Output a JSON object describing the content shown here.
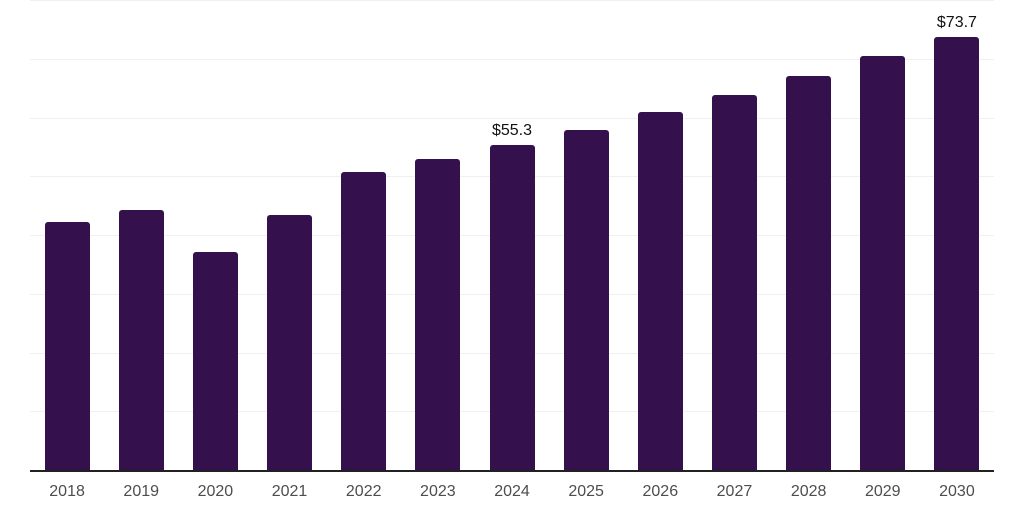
{
  "chart_data": {
    "type": "bar",
    "title": "",
    "xlabel": "",
    "ylabel": "",
    "categories": [
      "2018",
      "2019",
      "2020",
      "2021",
      "2022",
      "2023",
      "2024",
      "2025",
      "2026",
      "2027",
      "2028",
      "2029",
      "2030"
    ],
    "values": [
      42.2,
      44.2,
      37.1,
      43.4,
      50.7,
      53.0,
      55.3,
      57.9,
      60.9,
      63.8,
      67.1,
      70.4,
      73.7
    ],
    "value_labels": {
      "2024": "$55.3",
      "2030": "$73.7"
    },
    "ylim": [
      0,
      80
    ],
    "grid_step": 10,
    "grid": "horizontal-only",
    "legend": "none",
    "y_axis_labels_visible": false,
    "colors": {
      "bar": "#34114c",
      "gridline": "#f0f0f0",
      "axis_line": "#212121",
      "tick_label": "#4d4d4d",
      "value_label": "#111111",
      "background": "#ffffff"
    }
  }
}
